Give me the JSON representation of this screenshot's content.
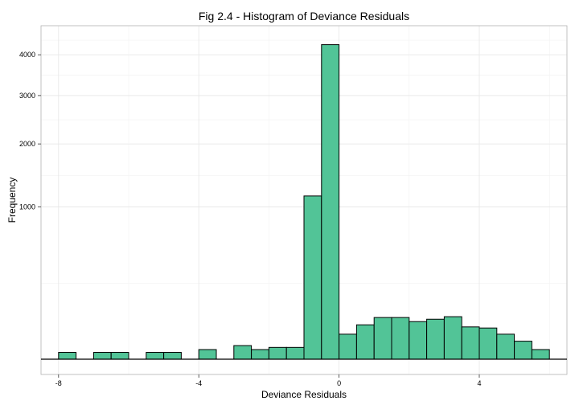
{
  "chart_data": {
    "type": "bar",
    "title": "Fig 2.4 - Histogram of Deviance Residuals",
    "xlabel": "Deviance Residuals",
    "ylabel": "Frequency",
    "y_scale": "sqrt",
    "grid": true,
    "bar_fill": "#52C497",
    "bar_stroke": "#000000",
    "xlim": [
      -8.5,
      6.5
    ],
    "ylim": [
      0,
      4800
    ],
    "x_ticks": [
      {
        "value": -8,
        "label": "-8"
      },
      {
        "value": -4,
        "label": "-4"
      },
      {
        "value": 0,
        "label": "0"
      },
      {
        "value": 4,
        "label": "4"
      }
    ],
    "y_ticks": [
      {
        "value": 1000,
        "label": "1000"
      },
      {
        "value": 2000,
        "label": "2000"
      },
      {
        "value": 3000,
        "label": "3000"
      },
      {
        "value": 4000,
        "label": "4000"
      }
    ],
    "bin_width": 0.5,
    "bins": [
      {
        "x_start": -8.0,
        "x_end": -7.5,
        "count": 2
      },
      {
        "x_start": -7.5,
        "x_end": -7.0,
        "count": 0
      },
      {
        "x_start": -7.0,
        "x_end": -6.5,
        "count": 2
      },
      {
        "x_start": -6.5,
        "x_end": -6.0,
        "count": 2
      },
      {
        "x_start": -6.0,
        "x_end": -5.5,
        "count": 0
      },
      {
        "x_start": -5.5,
        "x_end": -5.0,
        "count": 2
      },
      {
        "x_start": -5.0,
        "x_end": -4.5,
        "count": 2
      },
      {
        "x_start": -4.5,
        "x_end": -4.0,
        "count": 0
      },
      {
        "x_start": -4.0,
        "x_end": -3.5,
        "count": 4
      },
      {
        "x_start": -3.5,
        "x_end": -3.0,
        "count": 0
      },
      {
        "x_start": -3.0,
        "x_end": -2.5,
        "count": 8
      },
      {
        "x_start": -2.5,
        "x_end": -2.0,
        "count": 4
      },
      {
        "x_start": -2.0,
        "x_end": -1.5,
        "count": 6
      },
      {
        "x_start": -1.5,
        "x_end": -1.0,
        "count": 6
      },
      {
        "x_start": -1.0,
        "x_end": -0.5,
        "count": 1150
      },
      {
        "x_start": -0.5,
        "x_end": 0.0,
        "count": 4270
      },
      {
        "x_start": 0.0,
        "x_end": 0.5,
        "count": 27
      },
      {
        "x_start": 0.5,
        "x_end": 1.0,
        "count": 51
      },
      {
        "x_start": 1.0,
        "x_end": 1.5,
        "count": 75
      },
      {
        "x_start": 1.5,
        "x_end": 2.0,
        "count": 75
      },
      {
        "x_start": 2.0,
        "x_end": 2.5,
        "count": 61
      },
      {
        "x_start": 2.5,
        "x_end": 3.0,
        "count": 69
      },
      {
        "x_start": 3.0,
        "x_end": 3.5,
        "count": 78
      },
      {
        "x_start": 3.5,
        "x_end": 4.0,
        "count": 45
      },
      {
        "x_start": 4.0,
        "x_end": 4.5,
        "count": 42
      },
      {
        "x_start": 4.5,
        "x_end": 5.0,
        "count": 27
      },
      {
        "x_start": 5.0,
        "x_end": 5.5,
        "count": 14
      },
      {
        "x_start": 5.5,
        "x_end": 6.0,
        "count": 4
      }
    ]
  }
}
